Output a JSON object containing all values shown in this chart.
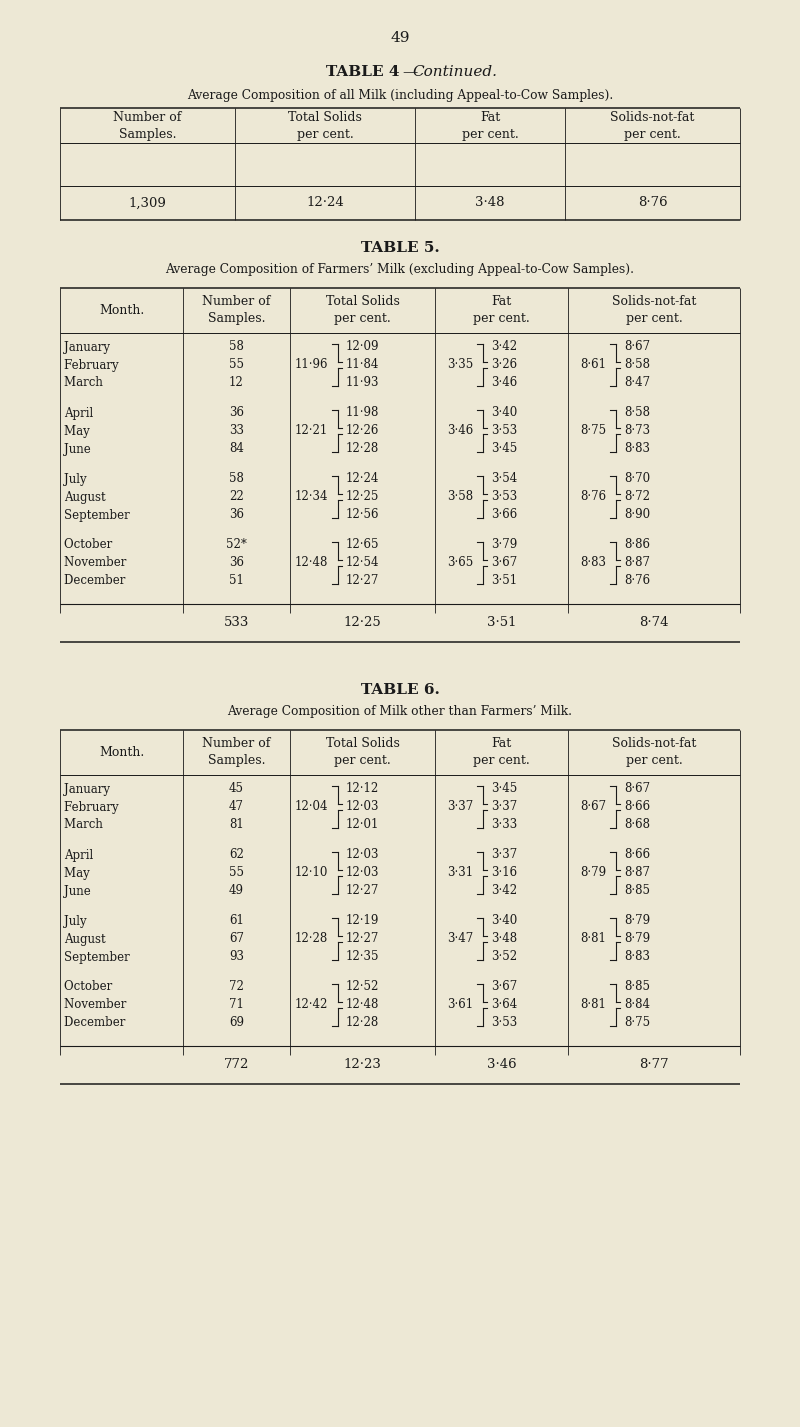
{
  "bg_color": "#ede8d5",
  "text_color": "#1a1a1a",
  "page_number": "49",
  "table5_groups": [
    {
      "months": [
        "January              ",
        "February           ",
        "March             "
      ],
      "samples": [
        "58",
        "55",
        "12"
      ],
      "ts_brace": "11·96",
      "ts_vals": [
        "12·09",
        "11·84",
        "11·93"
      ],
      "fat_brace": "3·35",
      "fat_vals": [
        "3·42",
        "3·26",
        "3·46"
      ],
      "snf_brace": "8·61",
      "snf_vals": [
        "8·67",
        "8·58",
        "8·47"
      ]
    },
    {
      "months": [
        "April               ",
        "May                ",
        "June              "
      ],
      "samples": [
        "36",
        "33",
        "84"
      ],
      "ts_brace": "12·21",
      "ts_vals": [
        "11·98",
        "12·26",
        "12·28"
      ],
      "fat_brace": "3·46",
      "fat_vals": [
        "3·40",
        "3·53",
        "3·45"
      ],
      "snf_brace": "8·75",
      "snf_vals": [
        "8·58",
        "8·73",
        "8·83"
      ]
    },
    {
      "months": [
        "July               ",
        "August            ",
        "September        "
      ],
      "samples": [
        "58",
        "22",
        "36"
      ],
      "ts_brace": "12·34",
      "ts_vals": [
        "12·24",
        "12·25",
        "12·56"
      ],
      "fat_brace": "3·58",
      "fat_vals": [
        "3·54",
        "3·53",
        "3·66"
      ],
      "snf_brace": "8·76",
      "snf_vals": [
        "8·70",
        "8·72",
        "8·90"
      ]
    },
    {
      "months": [
        "October            ",
        "November          ",
        "December          "
      ],
      "samples": [
        "52*",
        "36",
        "51"
      ],
      "ts_brace": "12·48",
      "ts_vals": [
        "12·65",
        "12·54",
        "12·27"
      ],
      "fat_brace": "3·65",
      "fat_vals": [
        "3·79",
        "3·67",
        "3·51"
      ],
      "snf_brace": "8·83",
      "snf_vals": [
        "8·86",
        "8·87",
        "8·76"
      ]
    }
  ],
  "table5_total": [
    "533",
    "12·25",
    "3·51",
    "8·74"
  ],
  "table6_groups": [
    {
      "months": [
        "January              ",
        "February           ",
        "March             "
      ],
      "samples": [
        "45",
        "47",
        "81"
      ],
      "ts_brace": "12·04",
      "ts_vals": [
        "12·12",
        "12·03",
        "12·01"
      ],
      "fat_brace": "3·37",
      "fat_vals": [
        "3·45",
        "3·37",
        "3·33"
      ],
      "snf_brace": "8·67",
      "snf_vals": [
        "8·67",
        "8·66",
        "8·68"
      ]
    },
    {
      "months": [
        "April               ",
        "May                ",
        "June              "
      ],
      "samples": [
        "62",
        "55",
        "49"
      ],
      "ts_brace": "12·10",
      "ts_vals": [
        "12·03",
        "12·03",
        "12·27"
      ],
      "fat_brace": "3·31",
      "fat_vals": [
        "3·37",
        "3·16",
        "3·42"
      ],
      "snf_brace": "8·79",
      "snf_vals": [
        "8·66",
        "8·87",
        "8·85"
      ]
    },
    {
      "months": [
        "July               ",
        "August            ",
        "September        "
      ],
      "samples": [
        "61",
        "67",
        "93"
      ],
      "ts_brace": "12·28",
      "ts_vals": [
        "12·19",
        "12·27",
        "12·35"
      ],
      "fat_brace": "3·47",
      "fat_vals": [
        "3·40",
        "3·48",
        "3·52"
      ],
      "snf_brace": "8·81",
      "snf_vals": [
        "8·79",
        "8·79",
        "8·83"
      ]
    },
    {
      "months": [
        "October            ",
        "November          ",
        "December          "
      ],
      "samples": [
        "72",
        "71",
        "69"
      ],
      "ts_brace": "12·42",
      "ts_vals": [
        "12·52",
        "12·48",
        "12·28"
      ],
      "fat_brace": "3·61",
      "fat_vals": [
        "3·67",
        "3·64",
        "3·53"
      ],
      "snf_brace": "8·81",
      "snf_vals": [
        "8·85",
        "8·84",
        "8·75"
      ]
    }
  ],
  "table6_total": [
    "772",
    "12·23",
    "3·46",
    "8·77"
  ]
}
